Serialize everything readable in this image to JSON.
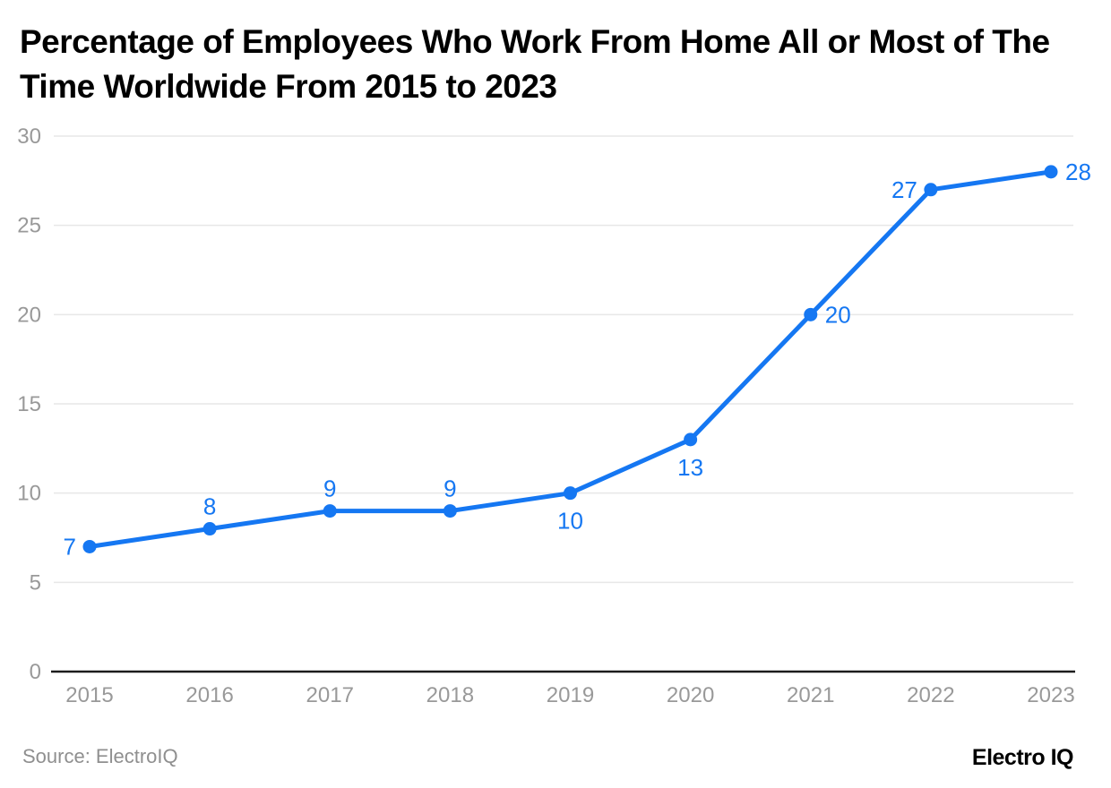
{
  "page": {
    "title": "Percentage of Employees Who Work From Home All or Most of The Time Worldwide From 2015 to 2023",
    "source_note": "Source: ElectroIQ",
    "brand": "Electro IQ"
  },
  "colors": {
    "accent_blue": "#1577f2",
    "grid_line": "#e7e7e7",
    "axis_line": "#1c1c1c",
    "tick_label": "#999999",
    "title_text": "#000000",
    "source_text": "#8f8f8f"
  },
  "chart_data": {
    "type": "line",
    "title": "Percentage of Employees Who Work From Home All or Most of The Time Worldwide From 2015 to 2023",
    "categories": [
      "2015",
      "2016",
      "2017",
      "2018",
      "2019",
      "2020",
      "2021",
      "2022",
      "2023"
    ],
    "values": [
      7,
      8,
      9,
      9,
      10,
      13,
      20,
      27,
      28
    ],
    "xlabel": "",
    "ylabel": "",
    "ylim": [
      0,
      30
    ],
    "yticks": [
      0,
      5,
      10,
      15,
      20,
      25,
      30
    ],
    "grid": true,
    "legend": false,
    "point_label_positions": [
      "left",
      "above",
      "above",
      "above",
      "below",
      "below",
      "right",
      "left",
      "right"
    ]
  }
}
